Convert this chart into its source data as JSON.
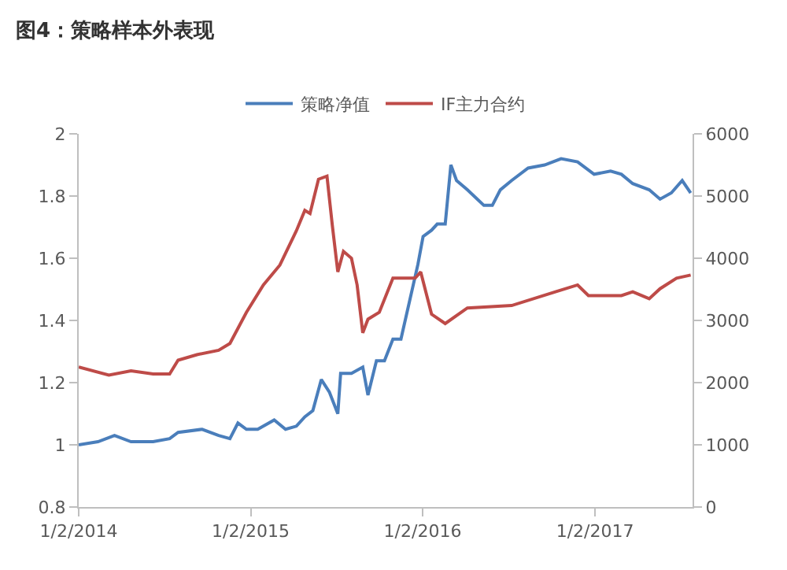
{
  "chart_data": {
    "type": "line",
    "title": "图4：策略样本外表现",
    "xlim": [
      "2014-01-02",
      "2017-07-28"
    ],
    "xticks": [
      {
        "value": "2014-01-02",
        "label": "1/2/2014"
      },
      {
        "value": "2015-01-02",
        "label": "1/2/2015"
      },
      {
        "value": "2016-01-02",
        "label": "1/2/2016"
      },
      {
        "value": "2017-01-02",
        "label": "1/2/2017"
      }
    ],
    "ylim": [
      0.8,
      2
    ],
    "yticks": [
      0.8,
      1,
      1.2,
      1.4,
      1.6,
      1.8,
      2
    ],
    "y2lim": [
      0,
      6000
    ],
    "y2ticks": [
      0,
      1000,
      2000,
      3000,
      4000,
      5000,
      6000
    ],
    "grid": false,
    "legend": "top",
    "marker": "none",
    "line_style": "solid",
    "series": [
      {
        "name": "策略净值",
        "color": "#4a7ebb",
        "x": [
          "2014-01-02",
          "2014-02-12",
          "2014-03-19",
          "2014-04-23",
          "2014-06-09",
          "2014-07-14",
          "2014-08-01",
          "2014-09-21",
          "2014-10-26",
          "2014-11-19",
          "2014-12-06",
          "2014-12-24",
          "2015-01-17",
          "2015-02-21",
          "2015-03-17",
          "2015-04-09",
          "2015-04-27",
          "2015-05-14",
          "2015-06-01",
          "2015-06-18",
          "2015-07-06",
          "2015-07-12",
          "2015-08-04",
          "2015-08-28",
          "2015-09-08",
          "2015-09-26",
          "2015-10-13",
          "2015-10-31",
          "2015-11-17",
          "2015-12-23",
          "2016-01-03",
          "2016-01-21",
          "2016-02-02",
          "2016-02-19",
          "2016-03-02",
          "2016-03-14",
          "2016-04-06",
          "2016-05-11",
          "2016-05-29",
          "2016-06-15",
          "2016-07-09",
          "2016-08-13",
          "2016-09-17",
          "2016-10-22",
          "2016-11-26",
          "2016-12-31",
          "2017-02-04",
          "2017-02-27",
          "2017-03-23",
          "2017-04-27",
          "2017-05-20",
          "2017-06-13",
          "2017-07-06",
          "2017-07-24"
        ],
        "values": [
          1.0,
          1.01,
          1.03,
          1.01,
          1.01,
          1.02,
          1.04,
          1.05,
          1.03,
          1.02,
          1.07,
          1.05,
          1.05,
          1.08,
          1.05,
          1.06,
          1.09,
          1.11,
          1.21,
          1.17,
          1.1,
          1.23,
          1.23,
          1.25,
          1.16,
          1.27,
          1.27,
          1.34,
          1.34,
          1.58,
          1.67,
          1.69,
          1.71,
          1.71,
          1.9,
          1.85,
          1.82,
          1.77,
          1.77,
          1.82,
          1.85,
          1.89,
          1.9,
          1.92,
          1.91,
          1.87,
          1.88,
          1.87,
          1.84,
          1.82,
          1.79,
          1.81,
          1.85,
          1.81
        ]
      },
      {
        "name": "IF主力合约",
        "color": "#be4b48",
        "axis": "y2",
        "x": [
          "2014-01-02",
          "2014-03-07",
          "2014-04-23",
          "2014-06-09",
          "2014-07-14",
          "2014-08-01",
          "2014-09-10",
          "2014-10-26",
          "2014-11-19",
          "2014-12-24",
          "2015-01-29",
          "2015-03-05",
          "2015-04-09",
          "2015-04-27",
          "2015-05-08",
          "2015-05-26",
          "2015-06-13",
          "2015-06-24",
          "2015-07-06",
          "2015-07-18",
          "2015-08-04",
          "2015-08-16",
          "2015-08-28",
          "2015-09-08",
          "2015-10-02",
          "2015-10-31",
          "2015-11-17",
          "2015-12-17",
          "2015-12-29",
          "2016-01-21",
          "2016-02-19",
          "2016-04-06",
          "2016-07-09",
          "2016-10-10",
          "2016-11-26",
          "2016-12-19",
          "2017-02-27",
          "2017-03-23",
          "2017-04-27",
          "2017-05-20",
          "2017-06-24",
          "2017-07-24"
        ],
        "values": [
          2250,
          2120,
          2190,
          2140,
          2140,
          2360,
          2450,
          2520,
          2630,
          3130,
          3570,
          3890,
          4440,
          4770,
          4720,
          5270,
          5320,
          4550,
          3780,
          4110,
          4000,
          3570,
          2800,
          3020,
          3130,
          3680,
          3680,
          3680,
          3780,
          3100,
          2950,
          3200,
          3240,
          3460,
          3570,
          3400,
          3400,
          3460,
          3350,
          3510,
          3680,
          3730
        ]
      }
    ]
  }
}
